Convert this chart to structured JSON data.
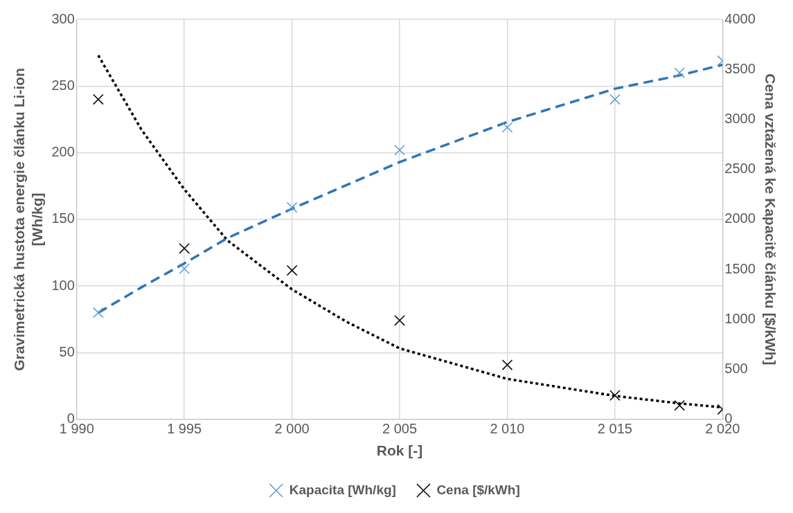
{
  "chart_data": {
    "type": "scatter",
    "xlabel": "Rok [-]",
    "ylabel": "Gravimetrická hustota energie článku Li-ion\n[Wh/kg]",
    "y2label": "Cena vztažená ke Kapacitě článku [$/kWh]",
    "xlim": [
      1990,
      2020
    ],
    "xticks": [
      {
        "value": 1990,
        "label": "1 990"
      },
      {
        "value": 1995,
        "label": "1 995"
      },
      {
        "value": 2000,
        "label": "2 000"
      },
      {
        "value": 2005,
        "label": "2 005"
      },
      {
        "value": 2010,
        "label": "2 010"
      },
      {
        "value": 2015,
        "label": "2 015"
      },
      {
        "value": 2020,
        "label": "2 020"
      }
    ],
    "ylim": [
      0,
      300
    ],
    "yticks": [
      0,
      50,
      100,
      150,
      200,
      250,
      300
    ],
    "y2lim": [
      0,
      4000
    ],
    "y2ticks": [
      0,
      500,
      1000,
      1500,
      2000,
      2500,
      3000,
      3500,
      4000
    ],
    "grid": true,
    "legend": "bottom",
    "series": [
      {
        "name": "Kapacita [Wh/kg]",
        "marker": "cross",
        "color": "#5b9bd5",
        "x": [
          1991,
          1995,
          2000,
          2005,
          2010,
          2015,
          2018,
          2020
        ],
        "values": [
          80,
          113,
          159,
          202,
          219,
          240,
          260,
          269
        ]
      },
      {
        "name": "Cena [$/kWh]",
        "marker": "cross",
        "axis": "y2",
        "color": "#000000",
        "x": [
          1991,
          1995,
          2000,
          2005,
          2010,
          2015,
          2018,
          2020
        ],
        "values": [
          3200,
          1710,
          1490,
          990,
          545,
          240,
          140,
          100
        ]
      },
      {
        "type": "line",
        "line_style": "dashed",
        "color": "#2e75b6",
        "x": [
          1991,
          1993,
          1995,
          1997,
          2000,
          2005,
          2010,
          2015,
          2018,
          2020
        ],
        "values": [
          80,
          99,
          117,
          136,
          158,
          193,
          223,
          248,
          258,
          266
        ]
      },
      {
        "type": "line",
        "line_style": "dotted",
        "axis": "y2",
        "color": "#000000",
        "x": [
          1991,
          1993,
          1995,
          1997,
          2000,
          2002.5,
          2005,
          2010,
          2015,
          2018,
          2020
        ],
        "values": [
          3640,
          2900,
          2300,
          1790,
          1300,
          980,
          710,
          405,
          235,
          160,
          120
        ]
      }
    ]
  }
}
